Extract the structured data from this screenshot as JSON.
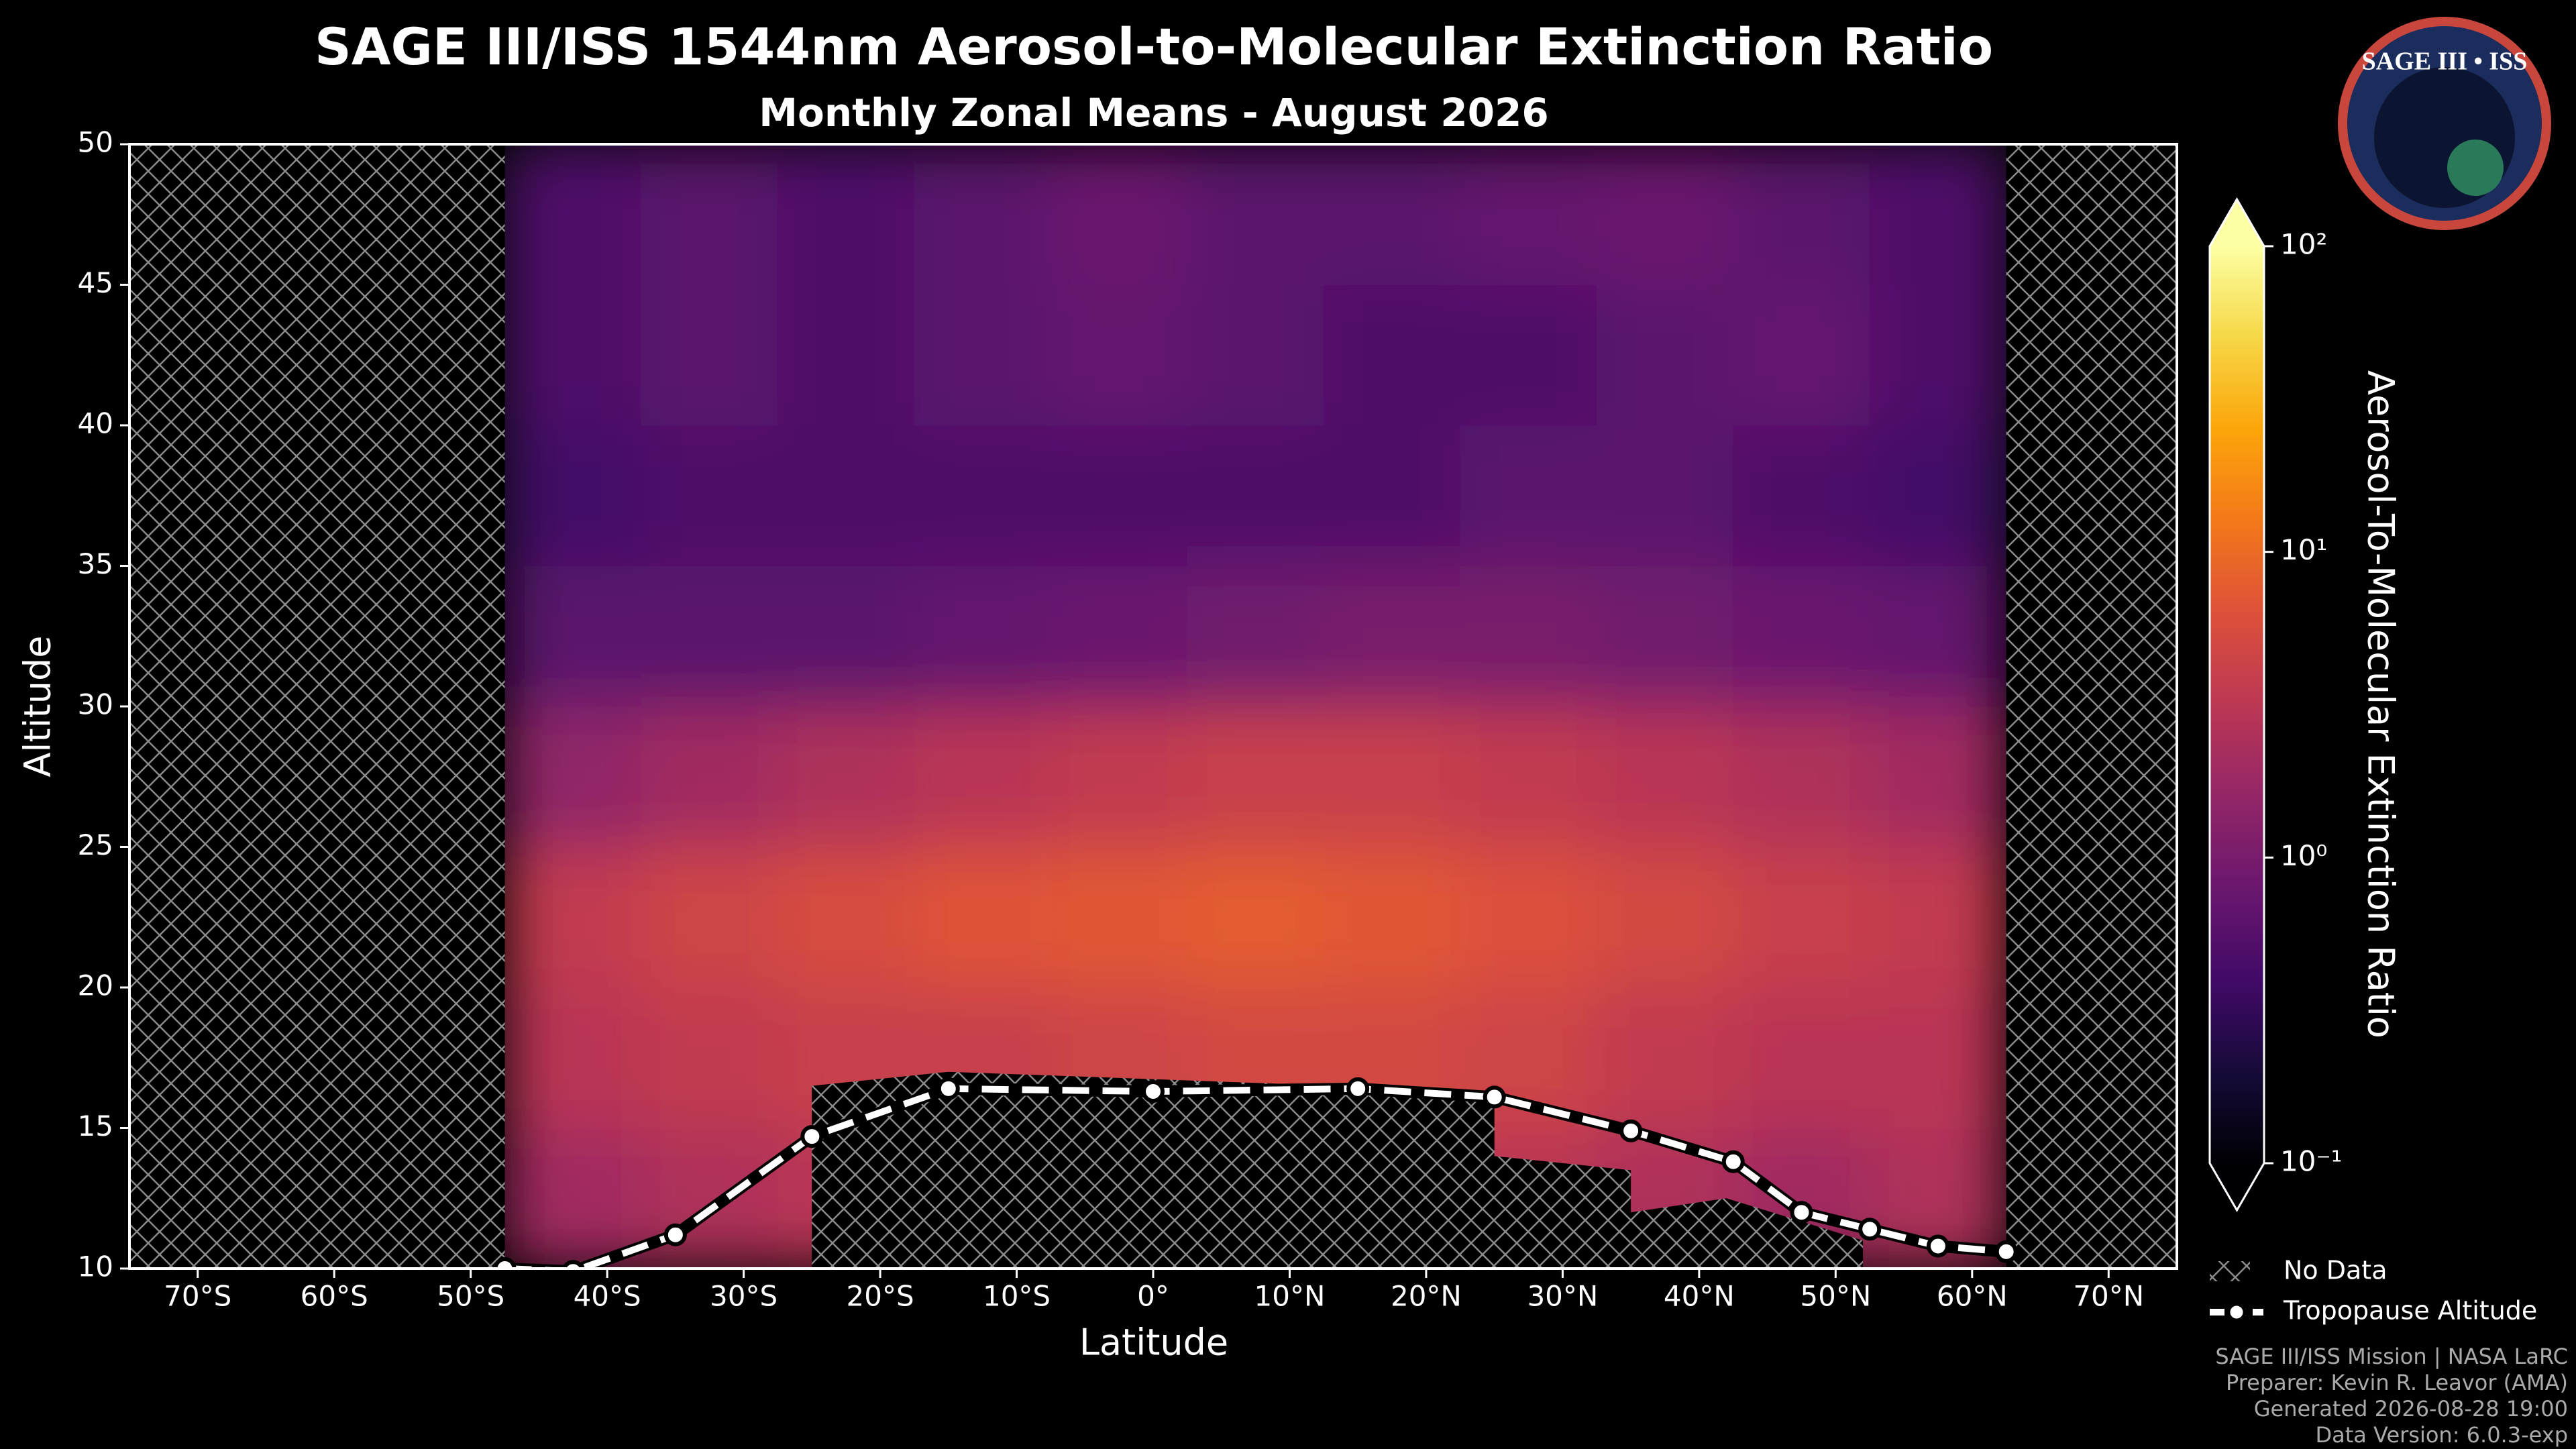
{
  "chart_data": {
    "type": "contour",
    "title": "SAGE III/ISS 1544nm Aerosol-to-Molecular Extinction Ratio",
    "subtitle": "Monthly Zonal Means - August 2026",
    "xlabel": "Latitude",
    "ylabel": "Altitude",
    "xlim": [
      -75,
      75
    ],
    "ylim": [
      10,
      50
    ],
    "xticks": [
      {
        "value": -70,
        "label": "70°S"
      },
      {
        "value": -60,
        "label": "60°S"
      },
      {
        "value": -50,
        "label": "50°S"
      },
      {
        "value": -40,
        "label": "40°S"
      },
      {
        "value": -30,
        "label": "30°S"
      },
      {
        "value": -20,
        "label": "20°S"
      },
      {
        "value": -10,
        "label": "10°S"
      },
      {
        "value": 0,
        "label": "0°"
      },
      {
        "value": 10,
        "label": "10°N"
      },
      {
        "value": 20,
        "label": "20°N"
      },
      {
        "value": 30,
        "label": "30°N"
      },
      {
        "value": 40,
        "label": "40°N"
      },
      {
        "value": 50,
        "label": "50°N"
      },
      {
        "value": 60,
        "label": "60°N"
      },
      {
        "value": 70,
        "label": "70°N"
      }
    ],
    "yticks": [
      10,
      15,
      20,
      25,
      30,
      35,
      40,
      45,
      50
    ],
    "x_edges": [
      -47.5,
      -37.5,
      -27.5,
      -17.5,
      -7.5,
      2.5,
      12.5,
      22.5,
      32.5,
      42.5,
      52.5,
      62.5
    ],
    "y_edges": [
      10,
      15,
      20,
      25,
      30,
      35,
      40,
      45,
      50
    ],
    "z": [
      [
        2,
        2.5,
        3,
        3.5,
        3.5,
        3.5,
        3.5,
        3,
        2.5,
        2,
        2.5
      ],
      [
        3,
        3.5,
        4,
        4,
        4.5,
        5,
        5,
        4.5,
        3.5,
        3,
        3
      ],
      [
        3.5,
        4.5,
        5.5,
        6.5,
        7,
        7.5,
        7,
        6,
        5,
        4,
        3.5
      ],
      [
        1.5,
        2,
        2.5,
        3,
        3.5,
        4,
        4,
        3.5,
        3,
        2.5,
        2
      ],
      [
        0.6,
        0.6,
        0.6,
        0.7,
        0.8,
        0.9,
        1,
        1,
        0.9,
        0.8,
        0.7
      ],
      [
        0.4,
        0.5,
        0.5,
        0.5,
        0.5,
        0.5,
        0.5,
        0.6,
        0.6,
        0.5,
        0.4
      ],
      [
        0.5,
        0.6,
        0.5,
        0.6,
        0.7,
        0.6,
        0.5,
        0.5,
        0.6,
        0.7,
        0.5
      ],
      [
        0.5,
        0.6,
        0.5,
        0.6,
        0.8,
        0.6,
        0.6,
        0.7,
        0.8,
        0.6,
        0.5
      ]
    ],
    "colormap": "inferno",
    "log_color": true,
    "clim": [
      0.1,
      100
    ],
    "cticks": [
      {
        "value": 0.1,
        "label": "10⁻¹"
      },
      {
        "value": 1,
        "label": "10⁰"
      },
      {
        "value": 10,
        "label": "10¹"
      },
      {
        "value": 100,
        "label": "10²"
      }
    ],
    "colorbar_label": "Aerosol-To-Molecular Extinction Ratio",
    "no_data_label": "No Data",
    "no_data": [
      [
        [
          -75,
          10
        ],
        [
          -75,
          50
        ],
        [
          -47.5,
          50
        ],
        [
          -47.5,
          10
        ]
      ],
      [
        [
          62.5,
          10
        ],
        [
          62.5,
          50
        ],
        [
          75,
          50
        ],
        [
          75,
          10
        ]
      ],
      [
        [
          -25,
          10
        ],
        [
          -25,
          16.5
        ],
        [
          -15,
          17
        ],
        [
          25,
          16.3
        ],
        [
          25,
          14
        ],
        [
          35,
          13.5
        ],
        [
          35,
          12
        ],
        [
          42,
          12.5
        ],
        [
          52,
          11
        ],
        [
          52,
          10
        ]
      ]
    ],
    "tropopause": {
      "name": "Tropopause Altitude",
      "color": "#ffffff",
      "x": [
        -47.5,
        -42.5,
        -35,
        -25,
        -15,
        0,
        15,
        25,
        35,
        42.5,
        47.5,
        52.5,
        57.5,
        62.5
      ],
      "y": [
        10,
        9.9,
        11.2,
        14.7,
        16.4,
        16.3,
        16.4,
        16.1,
        14.9,
        13.8,
        12,
        11.4,
        10.8,
        10.6
      ]
    }
  },
  "footer": [
    "SAGE III/ISS Mission | NASA LaRC",
    "Preparer: Kevin R. Leavor (AMA)",
    "Generated 2026-08-28 19:00",
    "Data Version: 6.0.3-exp"
  ],
  "logo_text": "SAGE III • ISS"
}
